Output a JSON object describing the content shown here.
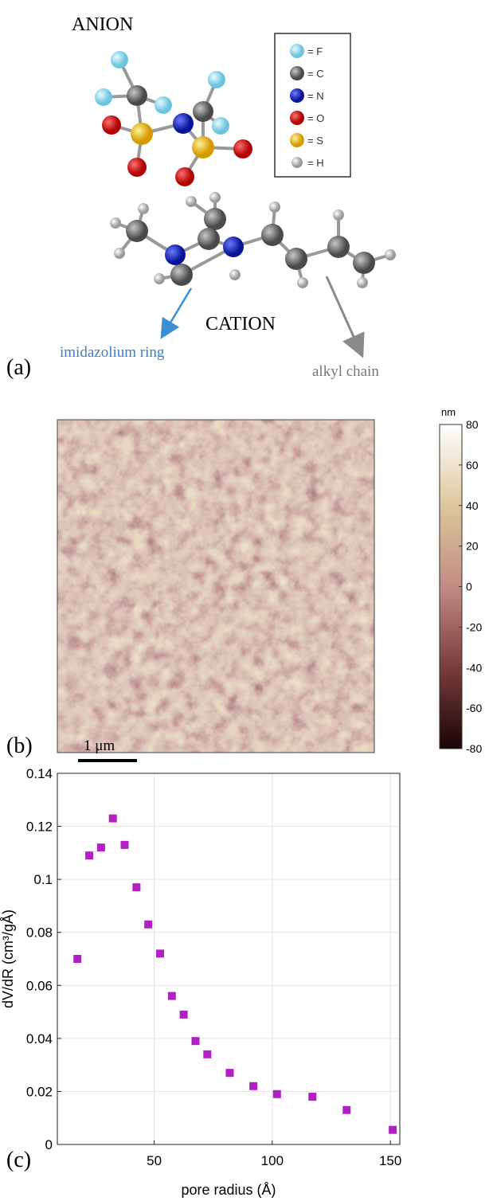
{
  "panel_a": {
    "label": "(a)",
    "anion": "ANION",
    "cation": "CATION",
    "ring_annotation": "imidazolium ring",
    "chain_annotation": "alkyl chain",
    "legend": [
      "= F",
      "= C",
      "= N",
      "= O",
      "= S",
      "= H"
    ]
  },
  "panel_b": {
    "label": "(b)",
    "scale_bar": "1 μm",
    "colorbar": {
      "label": "nm",
      "lim": [
        -80,
        80
      ],
      "ticks": [
        -80,
        -60,
        -40,
        -20,
        0,
        20,
        40,
        60,
        80
      ]
    }
  },
  "chart_data": {
    "type": "scatter",
    "label": "(c)",
    "xlabel": "pore radius (Å)",
    "ylabel": "dV/dR (cm³/gÅ)",
    "color": "#b21fc4",
    "grid": true,
    "xlim": [
      9,
      154
    ],
    "ylim": [
      0,
      0.14
    ],
    "xticks": [
      50,
      100,
      150
    ],
    "yticks": [
      0,
      0.02,
      0.04,
      0.06,
      0.08,
      0.1,
      0.12,
      0.14
    ],
    "x": [
      17.5,
      22.5,
      27.5,
      32.5,
      37.5,
      42.5,
      47.5,
      52.5,
      57.5,
      62.5,
      67.5,
      72.5,
      82,
      92,
      102,
      117,
      131.5,
      151
    ],
    "values": [
      0.07,
      0.109,
      0.112,
      0.123,
      0.113,
      0.097,
      0.083,
      0.072,
      0.056,
      0.049,
      0.039,
      0.034,
      0.027,
      0.022,
      0.019,
      0.018,
      0.013,
      0.0055
    ]
  }
}
